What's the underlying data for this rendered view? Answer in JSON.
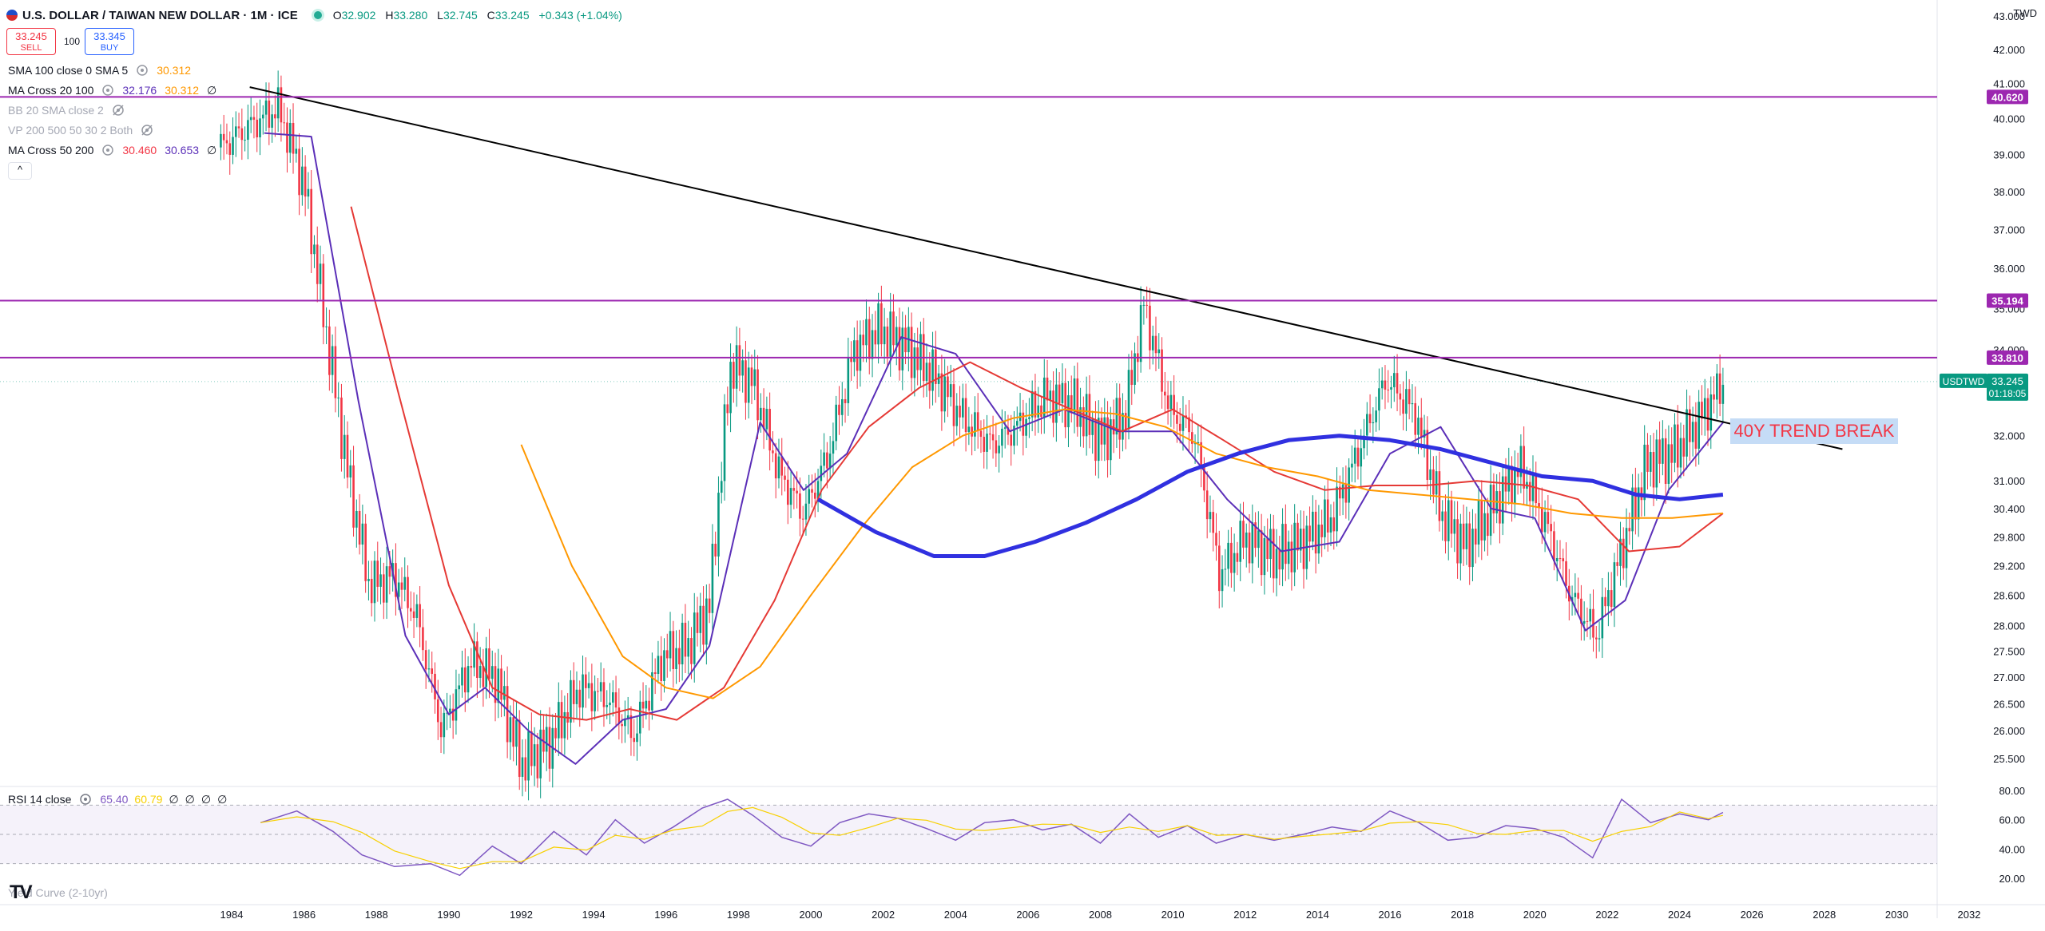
{
  "header": {
    "title": "U.S. DOLLAR / TAIWAN NEW DOLLAR · 1M · ICE",
    "open_label": "O",
    "open": "32.902",
    "high_label": "H",
    "high": "33.280",
    "low_label": "L",
    "low": "32.745",
    "close_label": "C",
    "close": "33.245",
    "change": "+0.343 (+1.04%)",
    "currency": "TWD",
    "market_status_color": "#22ab94"
  },
  "trade": {
    "sell_price": "33.245",
    "sell_label": "SELL",
    "buy_price": "33.345",
    "buy_label": "BUY",
    "quantity": "100"
  },
  "indicators": [
    {
      "name": "SMA 100 close 0 SMA 5",
      "values": [
        "30.312"
      ],
      "colors": [
        "#ff9800"
      ],
      "hidden": false
    },
    {
      "name": "MA Cross 20 100",
      "values": [
        "32.176",
        "30.312",
        "∅"
      ],
      "colors": [
        "#5b2fb8",
        "#ff9800",
        "#131722"
      ],
      "hidden": false
    },
    {
      "name": "BB 20 SMA close 2",
      "values": [],
      "colors": [],
      "hidden": true
    },
    {
      "name": "VP 200 500 50 30 2 Both",
      "values": [],
      "colors": [],
      "hidden": true
    },
    {
      "name": "MA Cross 50 200",
      "values": [
        "30.460",
        "30.653",
        "∅"
      ],
      "colors": [
        "#f23645",
        "#5b2fb8",
        "#131722"
      ],
      "hidden": false
    }
  ],
  "rsi": {
    "name": "RSI 14 close",
    "values": [
      "65.40",
      "60.79",
      "∅",
      "∅",
      "∅",
      "∅"
    ],
    "colors": [
      "#7e57c2",
      "#f7d000",
      "#131722",
      "#131722",
      "#131722",
      "#131722"
    ]
  },
  "yield_label": "Yield Curve (2-10yr)",
  "annotation": "40Y TREND BREAK",
  "price_tag": {
    "symbol": "USDTWD",
    "price": "33.245",
    "countdown": "01:18:05"
  },
  "levels": [
    {
      "label": "40.620",
      "value": 40.62
    },
    {
      "label": "35.194",
      "value": 35.194
    },
    {
      "label": "33.810",
      "value": 33.81
    }
  ],
  "colors": {
    "up": "#089981",
    "down": "#f23645",
    "level": "#9c27b0",
    "sma_slow": "#5b2fb8",
    "sma_fast": "#3030e0",
    "sma_red": "#e53935",
    "sma_orange": "#ff9800"
  },
  "chart_data": {
    "type": "line",
    "yscale": "log",
    "ylim": [
      25.0,
      43.0
    ],
    "xlim": [
      1983.0,
      2033.0
    ],
    "y_ticks": [
      "25.500",
      "26.000",
      "26.500",
      "27.000",
      "27.500",
      "28.000",
      "28.600",
      "29.200",
      "29.800",
      "30.400",
      "31.000",
      "32.000",
      "33.000",
      "34.000",
      "35.000",
      "36.000",
      "37.000",
      "38.000",
      "39.000",
      "40.000",
      "41.000",
      "42.000",
      "43.000"
    ],
    "x_ticks": [
      "1984",
      "1986",
      "1988",
      "1990",
      "1992",
      "1994",
      "1996",
      "1998",
      "2000",
      "2002",
      "2004",
      "2006",
      "2008",
      "2010",
      "2012",
      "2014",
      "2016",
      "2018",
      "2020",
      "2022",
      "2024",
      "2026",
      "2028",
      "2030",
      "2032"
    ],
    "price_series": {
      "name": "USDTWD",
      "x": [
        1983.7,
        1984.5,
        1985.3,
        1986.0,
        1986.6,
        1987.2,
        1987.8,
        1988.5,
        1989.1,
        1989.8,
        1990.6,
        1991.3,
        1992.0,
        1992.8,
        1993.6,
        1994.4,
        1995.1,
        1995.9,
        1996.6,
        1997.2,
        1997.8,
        1998.4,
        1999.1,
        1999.8,
        2000.5,
        2001.2,
        2001.9,
        2002.6,
        2003.4,
        2004.2,
        2005.0,
        2005.7,
        2006.5,
        2007.3,
        2008.0,
        2008.7,
        2009.2,
        2009.9,
        2010.6,
        2011.3,
        2012.0,
        2012.8,
        2013.6,
        2014.4,
        2015.1,
        2015.9,
        2016.7,
        2017.4,
        2018.1,
        2018.9,
        2019.6,
        2020.3,
        2021.0,
        2021.7,
        2022.4,
        2023.1,
        2023.8,
        2024.5,
        2025.2
      ],
      "y": [
        39.2,
        39.8,
        40.3,
        38.2,
        34.5,
        31.2,
        28.8,
        29.0,
        28.2,
        26.0,
        27.3,
        27.0,
        25.4,
        25.8,
        26.8,
        26.6,
        25.9,
        27.4,
        27.6,
        28.4,
        33.7,
        33.2,
        31.2,
        30.3,
        31.6,
        34.0,
        34.5,
        34.1,
        33.4,
        32.4,
        31.8,
        32.2,
        32.9,
        32.7,
        31.9,
        32.5,
        35.1,
        32.6,
        32.0,
        29.0,
        29.8,
        29.4,
        29.7,
        30.2,
        31.6,
        33.3,
        32.5,
        30.3,
        29.6,
        30.5,
        31.3,
        30.1,
        28.6,
        27.8,
        29.5,
        31.4,
        31.6,
        32.3,
        33.2
      ]
    },
    "series": [
      {
        "x": [
          1984.9,
          1986.2,
          1987.5,
          1988.8,
          1990.0,
          1991.0,
          1992.2,
          1993.5,
          1994.8,
          1996.0,
          1997.2,
          1998.6,
          1999.8,
          2001.0,
          2002.5,
          2004.0,
          2005.5,
          2007.0,
          2008.5,
          2010.0,
          2011.5,
          2013.0,
          2014.6,
          2016.0,
          2017.4,
          2018.8,
          2020.0,
          2021.4,
          2022.5,
          2023.7,
          2025.2
        ],
        "y": [
          39.6,
          39.5,
          32.8,
          27.8,
          26.3,
          26.8,
          26.0,
          25.4,
          26.2,
          26.4,
          27.6,
          32.3,
          30.8,
          31.6,
          34.3,
          33.9,
          32.1,
          32.6,
          32.1,
          32.1,
          30.6,
          29.5,
          29.7,
          31.6,
          32.2,
          30.4,
          30.2,
          27.9,
          28.5,
          30.8,
          32.3
        ]
      },
      {
        "x": [
          1987.3,
          1988.6,
          1990.0,
          1991.2,
          1992.5,
          1993.8,
          1995.0,
          1996.3,
          1997.6,
          1999.0,
          2000.3,
          2001.6,
          2003.0,
          2004.4,
          2005.8,
          2007.2,
          2008.6,
          2010.0,
          2011.4,
          2012.8,
          2014.2,
          2015.6,
          2017.0,
          2018.4,
          2019.8,
          2021.2,
          2022.6,
          2024.0,
          2025.2
        ],
        "y": [
          37.6,
          33.0,
          28.8,
          26.8,
          26.3,
          26.2,
          26.4,
          26.2,
          26.8,
          28.5,
          30.8,
          32.2,
          33.1,
          33.7,
          33.1,
          32.6,
          32.1,
          32.6,
          31.9,
          31.2,
          30.8,
          30.9,
          30.9,
          31.0,
          30.9,
          30.6,
          29.5,
          29.6,
          30.3
        ]
      },
      {
        "x": [
          1992.0,
          1993.4,
          1994.8,
          1996.0,
          1997.3,
          1998.6,
          2000.0,
          2001.4,
          2002.8,
          2004.2,
          2005.6,
          2007.0,
          2008.4,
          2009.8,
          2011.2,
          2012.6,
          2014.0,
          2015.4,
          2016.8,
          2018.2,
          2019.6,
          2021.0,
          2022.4,
          2023.8,
          2025.2
        ],
        "y": [
          31.8,
          29.2,
          27.4,
          26.8,
          26.6,
          27.2,
          28.6,
          30.0,
          31.3,
          32.0,
          32.4,
          32.6,
          32.5,
          32.2,
          31.6,
          31.3,
          31.1,
          30.8,
          30.7,
          30.6,
          30.5,
          30.3,
          30.2,
          30.2,
          30.3
        ]
      },
      {
        "x": [
          2000.2,
          2001.8,
          2003.4,
          2004.8,
          2006.2,
          2007.6,
          2009.0,
          2010.4,
          2011.8,
          2013.2,
          2014.6,
          2016.0,
          2017.4,
          2018.8,
          2020.2,
          2021.6,
          2022.8,
          2024.0,
          2025.2
        ],
        "y": [
          30.6,
          29.9,
          29.4,
          29.4,
          29.7,
          30.1,
          30.6,
          31.2,
          31.6,
          31.9,
          32.0,
          31.9,
          31.7,
          31.4,
          31.1,
          31.0,
          30.7,
          30.6,
          30.7
        ]
      }
    ],
    "trendline": {
      "x": [
        1984.5,
        2028.5
      ],
      "y": [
        40.9,
        31.7
      ]
    },
    "rsi": {
      "ylim": [
        20,
        80
      ],
      "y_ticks": [
        "20.00",
        "40.00",
        "60.00",
        "80.00"
      ],
      "band": [
        30,
        70
      ],
      "x": [
        1984.8,
        1985.8,
        1986.8,
        1987.6,
        1988.5,
        1989.5,
        1990.3,
        1991.2,
        1992.0,
        1992.9,
        1993.8,
        1994.6,
        1995.4,
        1996.2,
        1997.0,
        1997.7,
        1998.4,
        1999.2,
        2000.0,
        2000.8,
        2001.6,
        2002.4,
        2003.2,
        2004.0,
        2004.8,
        2005.6,
        2006.4,
        2007.2,
        2008.0,
        2008.8,
        2009.6,
        2010.4,
        2011.2,
        2012.0,
        2012.8,
        2013.6,
        2014.4,
        2015.2,
        2016.0,
        2016.8,
        2017.6,
        2018.4,
        2019.2,
        2020.0,
        2020.8,
        2021.6,
        2022.4,
        2023.2,
        2024.0,
        2024.8,
        2025.2
      ],
      "y": [
        58,
        66,
        52,
        36,
        28,
        30,
        22,
        42,
        30,
        52,
        36,
        60,
        44,
        55,
        68,
        74,
        63,
        48,
        42,
        58,
        64,
        61,
        54,
        46,
        58,
        60,
        53,
        57,
        44,
        64,
        48,
        56,
        44,
        50,
        46,
        50,
        55,
        52,
        66,
        58,
        46,
        48,
        56,
        54,
        48,
        34,
        74,
        58,
        64,
        60,
        65
      ]
    }
  }
}
